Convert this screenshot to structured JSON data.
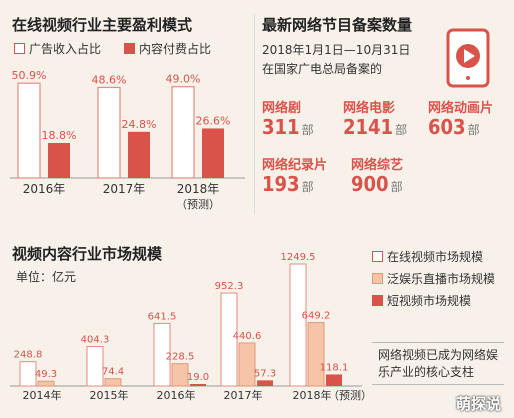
{
  "colors": {
    "red": "#d9534a",
    "peach": "#f7c4a7",
    "outline": "#e58b80",
    "bg": "#f7f1ea"
  },
  "top_left": {
    "title": "在线视频行业主要盈利模式",
    "legend": [
      "广告收入占比",
      "内容付费占比"
    ]
  },
  "top_right": {
    "title": "最新网络节目备案数量",
    "date_line": "2018年1月1日—10月31日",
    "org_line": "在国家广电总局备案的",
    "unit": "部",
    "stats": [
      {
        "label": "网络剧",
        "value": "311"
      },
      {
        "label": "网络电影",
        "value": "2141"
      },
      {
        "label": "网络动画片",
        "value": "603"
      },
      {
        "label": "网络纪录片",
        "value": "193"
      },
      {
        "label": "网络综艺",
        "value": "900"
      }
    ],
    "icon": "tablet-play-icon"
  },
  "bottom": {
    "title": "视频内容行业市场规模",
    "unit_label": "单位：亿元",
    "legend": [
      "在线视频市场规模",
      "泛娱乐直播市场规模",
      "短视频市场规模"
    ],
    "note": "网络视频已成为网络娱乐产业的核心支柱"
  },
  "watermark": "萌探说",
  "chart_data": [
    {
      "type": "bar",
      "title": "在线视频行业主要盈利模式",
      "categories": [
        "2016年",
        "2017年",
        "2018年"
      ],
      "category_sub": [
        "",
        "",
        "（预测）"
      ],
      "series": [
        {
          "name": "广告收入占比",
          "values": [
            50.9,
            48.6,
            49.0
          ],
          "labels": [
            "50.9%",
            "48.6%",
            "49.0%"
          ]
        },
        {
          "name": "内容付费占比",
          "values": [
            18.8,
            24.8,
            26.6
          ],
          "labels": [
            "18.8%",
            "24.8%",
            "26.6%"
          ]
        }
      ],
      "ylim": [
        0,
        55
      ]
    },
    {
      "type": "bar",
      "title": "视频内容行业市场规模",
      "ylabel": "单位：亿元",
      "categories": [
        "2014年",
        "2015年",
        "2016年",
        "2017年",
        "2018年"
      ],
      "category_sub": [
        "",
        "",
        "",
        "",
        "（预测）"
      ],
      "series": [
        {
          "name": "在线视频市场规模",
          "values": [
            248.8,
            404.3,
            641.5,
            952.3,
            1249.5
          ],
          "labels": [
            "248.8",
            "404.3",
            "641.5",
            "952.3",
            "1249.5"
          ]
        },
        {
          "name": "泛娱乐直播市场规模",
          "values": [
            49.3,
            74.4,
            228.5,
            440.6,
            649.2
          ],
          "labels": [
            "49.3",
            "74.4",
            "228.5",
            "440.6",
            "649.2"
          ]
        },
        {
          "name": "短视频市场规模",
          "values": [
            null,
            null,
            19.0,
            57.3,
            118.1
          ],
          "labels": [
            "",
            "",
            "19.0",
            "57.3",
            "118.1"
          ]
        }
      ],
      "ylim": [
        0,
        1300
      ]
    }
  ]
}
